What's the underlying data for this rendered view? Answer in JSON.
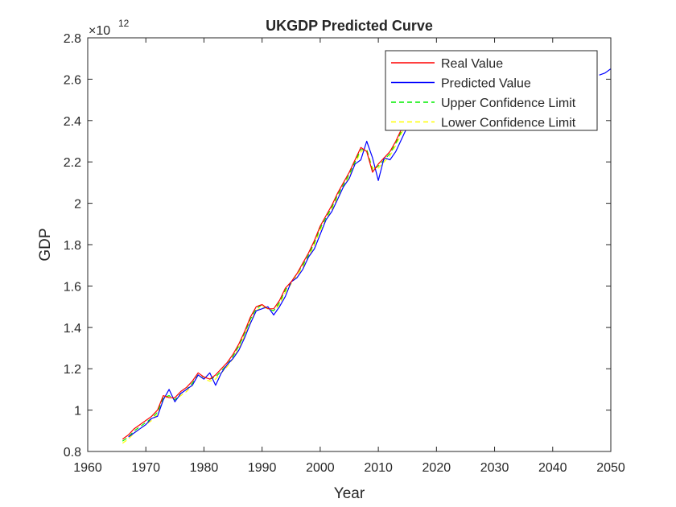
{
  "chart_data": {
    "type": "line",
    "title": "UKGDP Predicted Curve",
    "xlabel": "Year",
    "ylabel": "GDP",
    "exponent_label": "×10",
    "exponent_power": "12",
    "xlim": [
      1960,
      2050
    ],
    "ylim": [
      0.8,
      2.8
    ],
    "y_scale_factor": "1e12",
    "xticks": [
      1960,
      1970,
      1980,
      1990,
      2000,
      2010,
      2020,
      2030,
      2040,
      2050
    ],
    "yticks": [
      "0.8",
      "1",
      "1.2",
      "1.4",
      "1.6",
      "1.8",
      "2",
      "2.2",
      "2.4",
      "2.6",
      "2.8"
    ],
    "legend_position": "top-right",
    "grid": false,
    "series": [
      {
        "name": "Real Value",
        "color": "#ff0000",
        "style": "solid",
        "x": [
          1966,
          1967,
          1968,
          1969,
          1970,
          1971,
          1972,
          1973,
          1974,
          1975,
          1976,
          1977,
          1978,
          1979,
          1980,
          1981,
          1982,
          1983,
          1984,
          1985,
          1986,
          1987,
          1988,
          1989,
          1990,
          1991,
          1992,
          1993,
          1994,
          1995,
          1996,
          1997,
          1998,
          1999,
          2000,
          2001,
          2002,
          2003,
          2004,
          2005,
          2006,
          2007,
          2008,
          2009,
          2010,
          2011,
          2012,
          2013,
          2014,
          2015
        ],
        "values": [
          0.86,
          0.88,
          0.91,
          0.93,
          0.95,
          0.97,
          1.0,
          1.07,
          1.06,
          1.06,
          1.09,
          1.11,
          1.14,
          1.18,
          1.16,
          1.15,
          1.17,
          1.2,
          1.23,
          1.27,
          1.32,
          1.38,
          1.45,
          1.5,
          1.51,
          1.49,
          1.49,
          1.53,
          1.59,
          1.62,
          1.66,
          1.71,
          1.76,
          1.82,
          1.89,
          1.94,
          1.99,
          2.05,
          2.1,
          2.15,
          2.21,
          2.27,
          2.25,
          2.15,
          2.19,
          2.22,
          2.25,
          2.3,
          2.36,
          2.42
        ]
      },
      {
        "name": "Predicted Value",
        "color": "#0000ff",
        "style": "solid",
        "x": [
          1967,
          1968,
          1969,
          1970,
          1971,
          1972,
          1973,
          1974,
          1975,
          1976,
          1977,
          1978,
          1979,
          1980,
          1981,
          1982,
          1983,
          1984,
          1985,
          1986,
          1987,
          1988,
          1989,
          1990,
          1991,
          1992,
          1993,
          1994,
          1995,
          1996,
          1997,
          1998,
          1999,
          2000,
          2001,
          2002,
          2003,
          2004,
          2005,
          2006,
          2007,
          2008,
          2009,
          2010,
          2011,
          2012,
          2013,
          2014,
          2015,
          2016
        ],
        "values": [
          0.87,
          0.89,
          0.91,
          0.93,
          0.96,
          0.97,
          1.05,
          1.1,
          1.04,
          1.08,
          1.1,
          1.12,
          1.17,
          1.15,
          1.18,
          1.12,
          1.18,
          1.22,
          1.25,
          1.29,
          1.35,
          1.42,
          1.48,
          1.49,
          1.5,
          1.46,
          1.5,
          1.55,
          1.62,
          1.64,
          1.68,
          1.74,
          1.78,
          1.85,
          1.92,
          1.96,
          2.02,
          2.08,
          2.12,
          2.19,
          2.21,
          2.3,
          2.22,
          2.11,
          2.22,
          2.21,
          2.25,
          2.31,
          2.37,
          2.42
        ],
        "forecast_x": [
          2048,
          2049,
          2050
        ],
        "forecast_values": [
          2.62,
          2.63,
          2.65
        ]
      },
      {
        "name": "Upper Confidence Limit",
        "color": "#00ee00",
        "style": "dashed",
        "x": [
          1966,
          1967,
          1968,
          1969,
          1970,
          1971,
          1972,
          1973,
          1974,
          1975,
          1976,
          1977,
          1978,
          1979,
          1980,
          1981,
          1982,
          1983,
          1984,
          1985,
          1986,
          1987,
          1988,
          1989,
          1990,
          1991,
          1992,
          1993,
          1994,
          1995,
          1996,
          1997,
          1998,
          1999,
          2000,
          2001,
          2002,
          2003,
          2004,
          2005,
          2006,
          2007,
          2008,
          2009,
          2010,
          2011,
          2012,
          2013,
          2014,
          2015
        ],
        "values": [
          0.85,
          0.87,
          0.9,
          0.92,
          0.94,
          0.96,
          0.99,
          1.06,
          1.07,
          1.05,
          1.08,
          1.1,
          1.13,
          1.17,
          1.16,
          1.15,
          1.16,
          1.19,
          1.22,
          1.26,
          1.31,
          1.37,
          1.44,
          1.49,
          1.51,
          1.49,
          1.48,
          1.52,
          1.58,
          1.62,
          1.66,
          1.7,
          1.75,
          1.81,
          1.88,
          1.93,
          1.98,
          2.04,
          2.09,
          2.14,
          2.2,
          2.26,
          2.26,
          2.16,
          2.18,
          2.21,
          2.24,
          2.29,
          2.35,
          2.41
        ]
      },
      {
        "name": "Lower Confidence Limit",
        "color": "#ffff00",
        "style": "dashed",
        "x": [
          1966,
          1967,
          1968,
          1969,
          1970,
          1971,
          1972,
          1973,
          1974,
          1975,
          1976,
          1977,
          1978,
          1979,
          1980,
          1981,
          1982,
          1983,
          1984,
          1985,
          1986,
          1987,
          1988,
          1989,
          1990,
          1991,
          1992,
          1993,
          1994,
          1995,
          1996,
          1997,
          1998,
          1999,
          2000,
          2001,
          2002,
          2003,
          2004,
          2005,
          2006,
          2007,
          2008,
          2009,
          2010,
          2011,
          2012,
          2013,
          2014,
          2015
        ],
        "values": [
          0.84,
          0.86,
          0.89,
          0.91,
          0.93,
          0.95,
          0.98,
          1.05,
          1.07,
          1.05,
          1.07,
          1.09,
          1.12,
          1.17,
          1.15,
          1.14,
          1.15,
          1.18,
          1.21,
          1.25,
          1.3,
          1.36,
          1.43,
          1.48,
          1.5,
          1.49,
          1.48,
          1.51,
          1.57,
          1.61,
          1.65,
          1.69,
          1.74,
          1.8,
          1.87,
          1.92,
          1.97,
          2.03,
          2.08,
          2.13,
          2.19,
          2.25,
          2.26,
          2.17,
          2.17,
          2.2,
          2.23,
          2.28,
          2.34,
          2.4
        ]
      }
    ]
  }
}
